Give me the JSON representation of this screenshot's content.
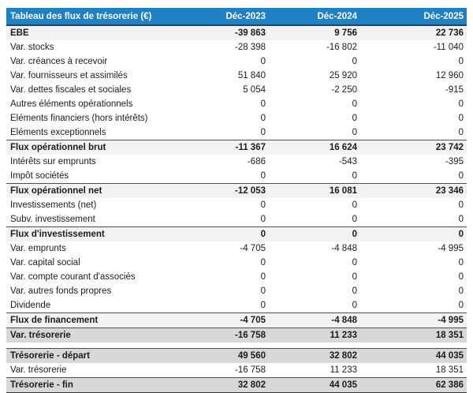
{
  "chart_data": {
    "type": "table",
    "title": "Tableau des flux de trésorerie (€)",
    "columns": [
      "Déc-2023",
      "Déc-2024",
      "Déc-2025"
    ],
    "flow_rows": [
      {
        "label": "EBE",
        "values": [
          "-39 863",
          "9 756",
          "22 736"
        ],
        "style": "total",
        "top_line": false,
        "bottom_line": false
      },
      {
        "label": "Var. stocks",
        "values": [
          "-28 398",
          "-16 802",
          "-11 040"
        ],
        "style": "normal",
        "top_line": false,
        "bottom_line": false
      },
      {
        "label": "Var. créances à recevoir",
        "values": [
          "0",
          "0",
          "0"
        ],
        "style": "normal",
        "top_line": false,
        "bottom_line": false
      },
      {
        "label": "Var. fournisseurs et assimilés",
        "values": [
          "51 840",
          "25 920",
          "12 960"
        ],
        "style": "normal",
        "top_line": false,
        "bottom_line": false
      },
      {
        "label": "Var. dettes fiscales et sociales",
        "values": [
          "5 054",
          "-2 250",
          "-915"
        ],
        "style": "normal",
        "top_line": false,
        "bottom_line": false
      },
      {
        "label": "Autres éléments opérationnels",
        "values": [
          "0",
          "0",
          "0"
        ],
        "style": "normal",
        "top_line": false,
        "bottom_line": false
      },
      {
        "label": "Eléments financiers (hors intérêts)",
        "values": [
          "0",
          "0",
          "0"
        ],
        "style": "normal",
        "top_line": false,
        "bottom_line": false
      },
      {
        "label": "Eléments exceptionnels",
        "values": [
          "0",
          "0",
          "0"
        ],
        "style": "normal",
        "top_line": false,
        "bottom_line": false
      },
      {
        "label": "Flux opérationnel brut",
        "values": [
          "-11 367",
          "16 624",
          "23 742"
        ],
        "style": "total",
        "top_line": true,
        "bottom_line": false
      },
      {
        "label": "Intérêts sur emprunts",
        "values": [
          "-686",
          "-543",
          "-395"
        ],
        "style": "normal",
        "top_line": false,
        "bottom_line": false
      },
      {
        "label": "Impôt sociétés",
        "values": [
          "0",
          "0",
          "0"
        ],
        "style": "normal",
        "top_line": false,
        "bottom_line": false
      },
      {
        "label": "Flux opérationnel net",
        "values": [
          "-12 053",
          "16 081",
          "23 346"
        ],
        "style": "total",
        "top_line": true,
        "bottom_line": false
      },
      {
        "label": "Investissements (net)",
        "values": [
          "0",
          "0",
          "0"
        ],
        "style": "normal",
        "top_line": false,
        "bottom_line": false
      },
      {
        "label": "Subv. investissement",
        "values": [
          "0",
          "0",
          "0"
        ],
        "style": "normal",
        "top_line": false,
        "bottom_line": false
      },
      {
        "label": "Flux d'investissement",
        "values": [
          "0",
          "0",
          "0"
        ],
        "style": "total",
        "top_line": true,
        "bottom_line": false
      },
      {
        "label": "Var. emprunts",
        "values": [
          "-4 705",
          "-4 848",
          "-4 995"
        ],
        "style": "normal",
        "top_line": false,
        "bottom_line": false
      },
      {
        "label": "Var. capital social",
        "values": [
          "0",
          "0",
          "0"
        ],
        "style": "normal",
        "top_line": false,
        "bottom_line": false
      },
      {
        "label": "Var. compte courant d'associés",
        "values": [
          "0",
          "0",
          "0"
        ],
        "style": "normal",
        "top_line": false,
        "bottom_line": false
      },
      {
        "label": "Var. autres fonds propres",
        "values": [
          "0",
          "0",
          "0"
        ],
        "style": "normal",
        "top_line": false,
        "bottom_line": false
      },
      {
        "label": "Dividende",
        "values": [
          "0",
          "0",
          "0"
        ],
        "style": "normal",
        "top_line": false,
        "bottom_line": false
      },
      {
        "label": "Flux de financement",
        "values": [
          "-4 705",
          "-4 848",
          "-4 995"
        ],
        "style": "total",
        "top_line": true,
        "bottom_line": false
      },
      {
        "label": "Var. trésorerie",
        "values": [
          "-16 758",
          "11 233",
          "18 351"
        ],
        "style": "grand",
        "top_line": true,
        "bottom_line": false
      }
    ],
    "treasury_rows": [
      {
        "label": "Trésorerie - départ",
        "values": [
          "49 560",
          "32 802",
          "44 035"
        ],
        "style": "grand",
        "top_line": true,
        "bottom_line": false
      },
      {
        "label": "Var. trésorerie",
        "values": [
          "-16 758",
          "11 233",
          "18 351"
        ],
        "style": "normal",
        "top_line": false,
        "bottom_line": false
      },
      {
        "label": "Trésorerie - fin",
        "values": [
          "32 802",
          "44 035",
          "62 386"
        ],
        "style": "grand",
        "top_line": true,
        "bottom_line": true
      }
    ]
  },
  "colors": {
    "header_bg": "#1e81c4",
    "header_text": "#ffffff",
    "subtotal_row_bg": "#f2f2f2",
    "highlight_row_bg": "#d8d8d8",
    "dark_border": "#3f3f3f",
    "body_text": "#1c1c1c"
  }
}
